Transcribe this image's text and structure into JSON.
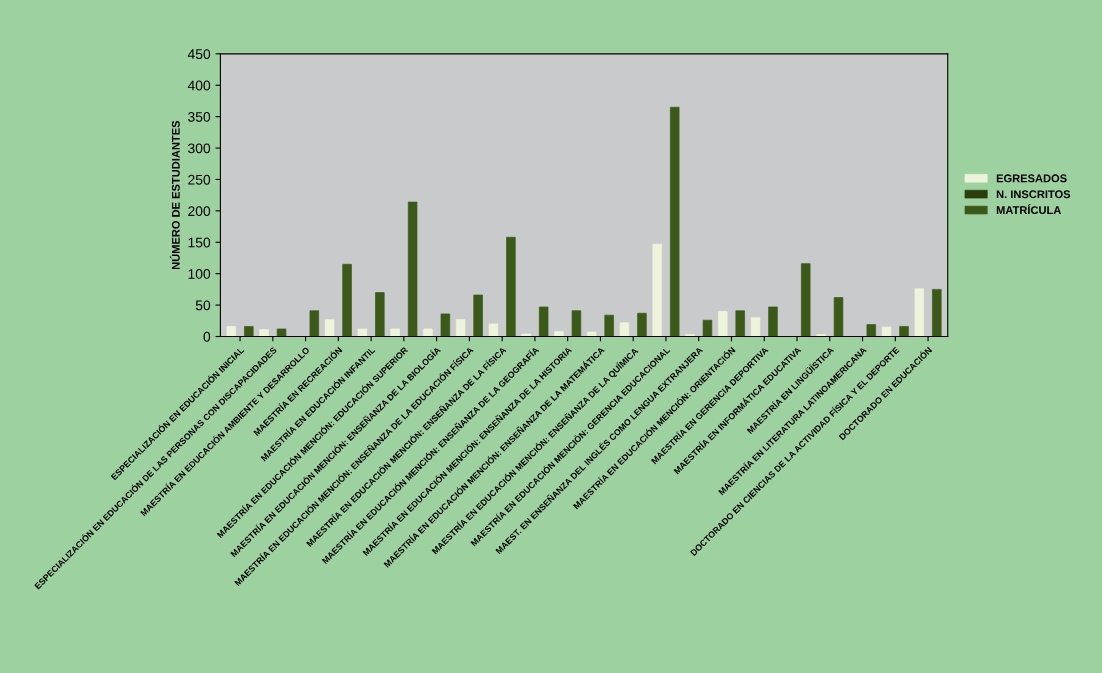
{
  "chart_data": {
    "type": "bar",
    "ylabel": "NÚMERO DE ESTUDIANTES",
    "categories": [
      "ESPECIALIZACIÓN EN EDUCACIÓN INICIAL",
      "ESPECIALIZACIÓN EN EDUCACIÓN DE LAS PERSONAS CON DISCAPACIDADES",
      "MAESTRÍA EN EDUCACIÓN AMBIENTE Y DESARROLLO",
      "MAESTRÍA EN RECREACIÓN",
      "MAESTRÍA EN EDUCACIÓN INFANTIL",
      "MAESTRÍA EN EDUCACIÓN MENCIÓN: EDUCACIÓN SUPERIOR",
      "MAESTRÍA EN EDUCACIÓN MENCIÓN: ENSEÑANZA DE LA BIOLOGÍA",
      "MAESTRÍA EN EDUCACIÓN MENCIÓN: ENSEÑANZA DE LA EDUCACIÓN FÍSICA",
      "MAESTRÍA EN EDUCACIÓN MENCIÓN: ENSEÑANZA DE LA FÍSICA",
      "MAESTRÍA EN EDUCACIÓN MENCIÓN: ENSEÑANZA DE LA GEOGRAFÍA",
      "MAESTRÍA EN EDUCACIÓN MENCIÓN: ENSEÑANZA DE LA HISTORIA",
      "MAESTRÍA EN EDUCACIÓN MENCIÓN: ENSEÑANZA DE LA MATEMÁTICA",
      "MAESTRÍA EN EDUCACIÓN MENCIÓN: ENSEÑANZA DE LA QUÍMICA",
      "MAESTRÍA EN EDUCACIÓN MENCIÓN: GERENCIA EDUCACIONAL",
      "MAEST. EN ENSEÑANZA DEL INGLÉS COMO LENGUA EXTRANJERA",
      "MAESTRÍA EN EDUCACIÓN MENCIÓN: ORIENTACIÓN",
      "MAESTRÍA EN GERENCIA DEPORTIVA",
      "MAESTRÍA EN INFORMÁTICA EDUCATIVA",
      "MAESTRÍA EN LINGÜÍSTICA",
      "MAESTRÍA EN LITERATURA LATINOAMERICANA",
      "DOCTORADO EN CIENCIAS DE LA ACTIVIDAD FÍSICA Y EL DEPORTE",
      "DOCTORADO EN EDUCACIÓN"
    ],
    "series": [
      {
        "name": "EGRESADOS",
        "color": "#eef4dc",
        "values": [
          16,
          11,
          0,
          27,
          12,
          12,
          12,
          27,
          20,
          4,
          8,
          7,
          22,
          147,
          3,
          40,
          30,
          0,
          3,
          0,
          15,
          76
        ]
      },
      {
        "name": "N. INSCRITOS",
        "color": "#2b3f0a",
        "values": [
          0,
          0,
          0,
          0,
          0,
          0,
          0,
          0,
          0,
          0,
          0,
          0,
          0,
          0,
          0,
          0,
          0,
          0,
          0,
          0,
          0,
          0
        ]
      },
      {
        "name": "MATRÍCULA",
        "color": "#3b5a1a",
        "values": [
          16,
          12,
          41,
          115,
          70,
          214,
          36,
          66,
          158,
          47,
          41,
          34,
          37,
          365,
          26,
          41,
          47,
          116,
          62,
          19,
          16,
          75
        ]
      }
    ],
    "ylim": [
      0,
      450
    ],
    "yticks": [
      0,
      50,
      100,
      150,
      200,
      250,
      300,
      350,
      400,
      450
    ],
    "grid": false,
    "legend": "right"
  }
}
